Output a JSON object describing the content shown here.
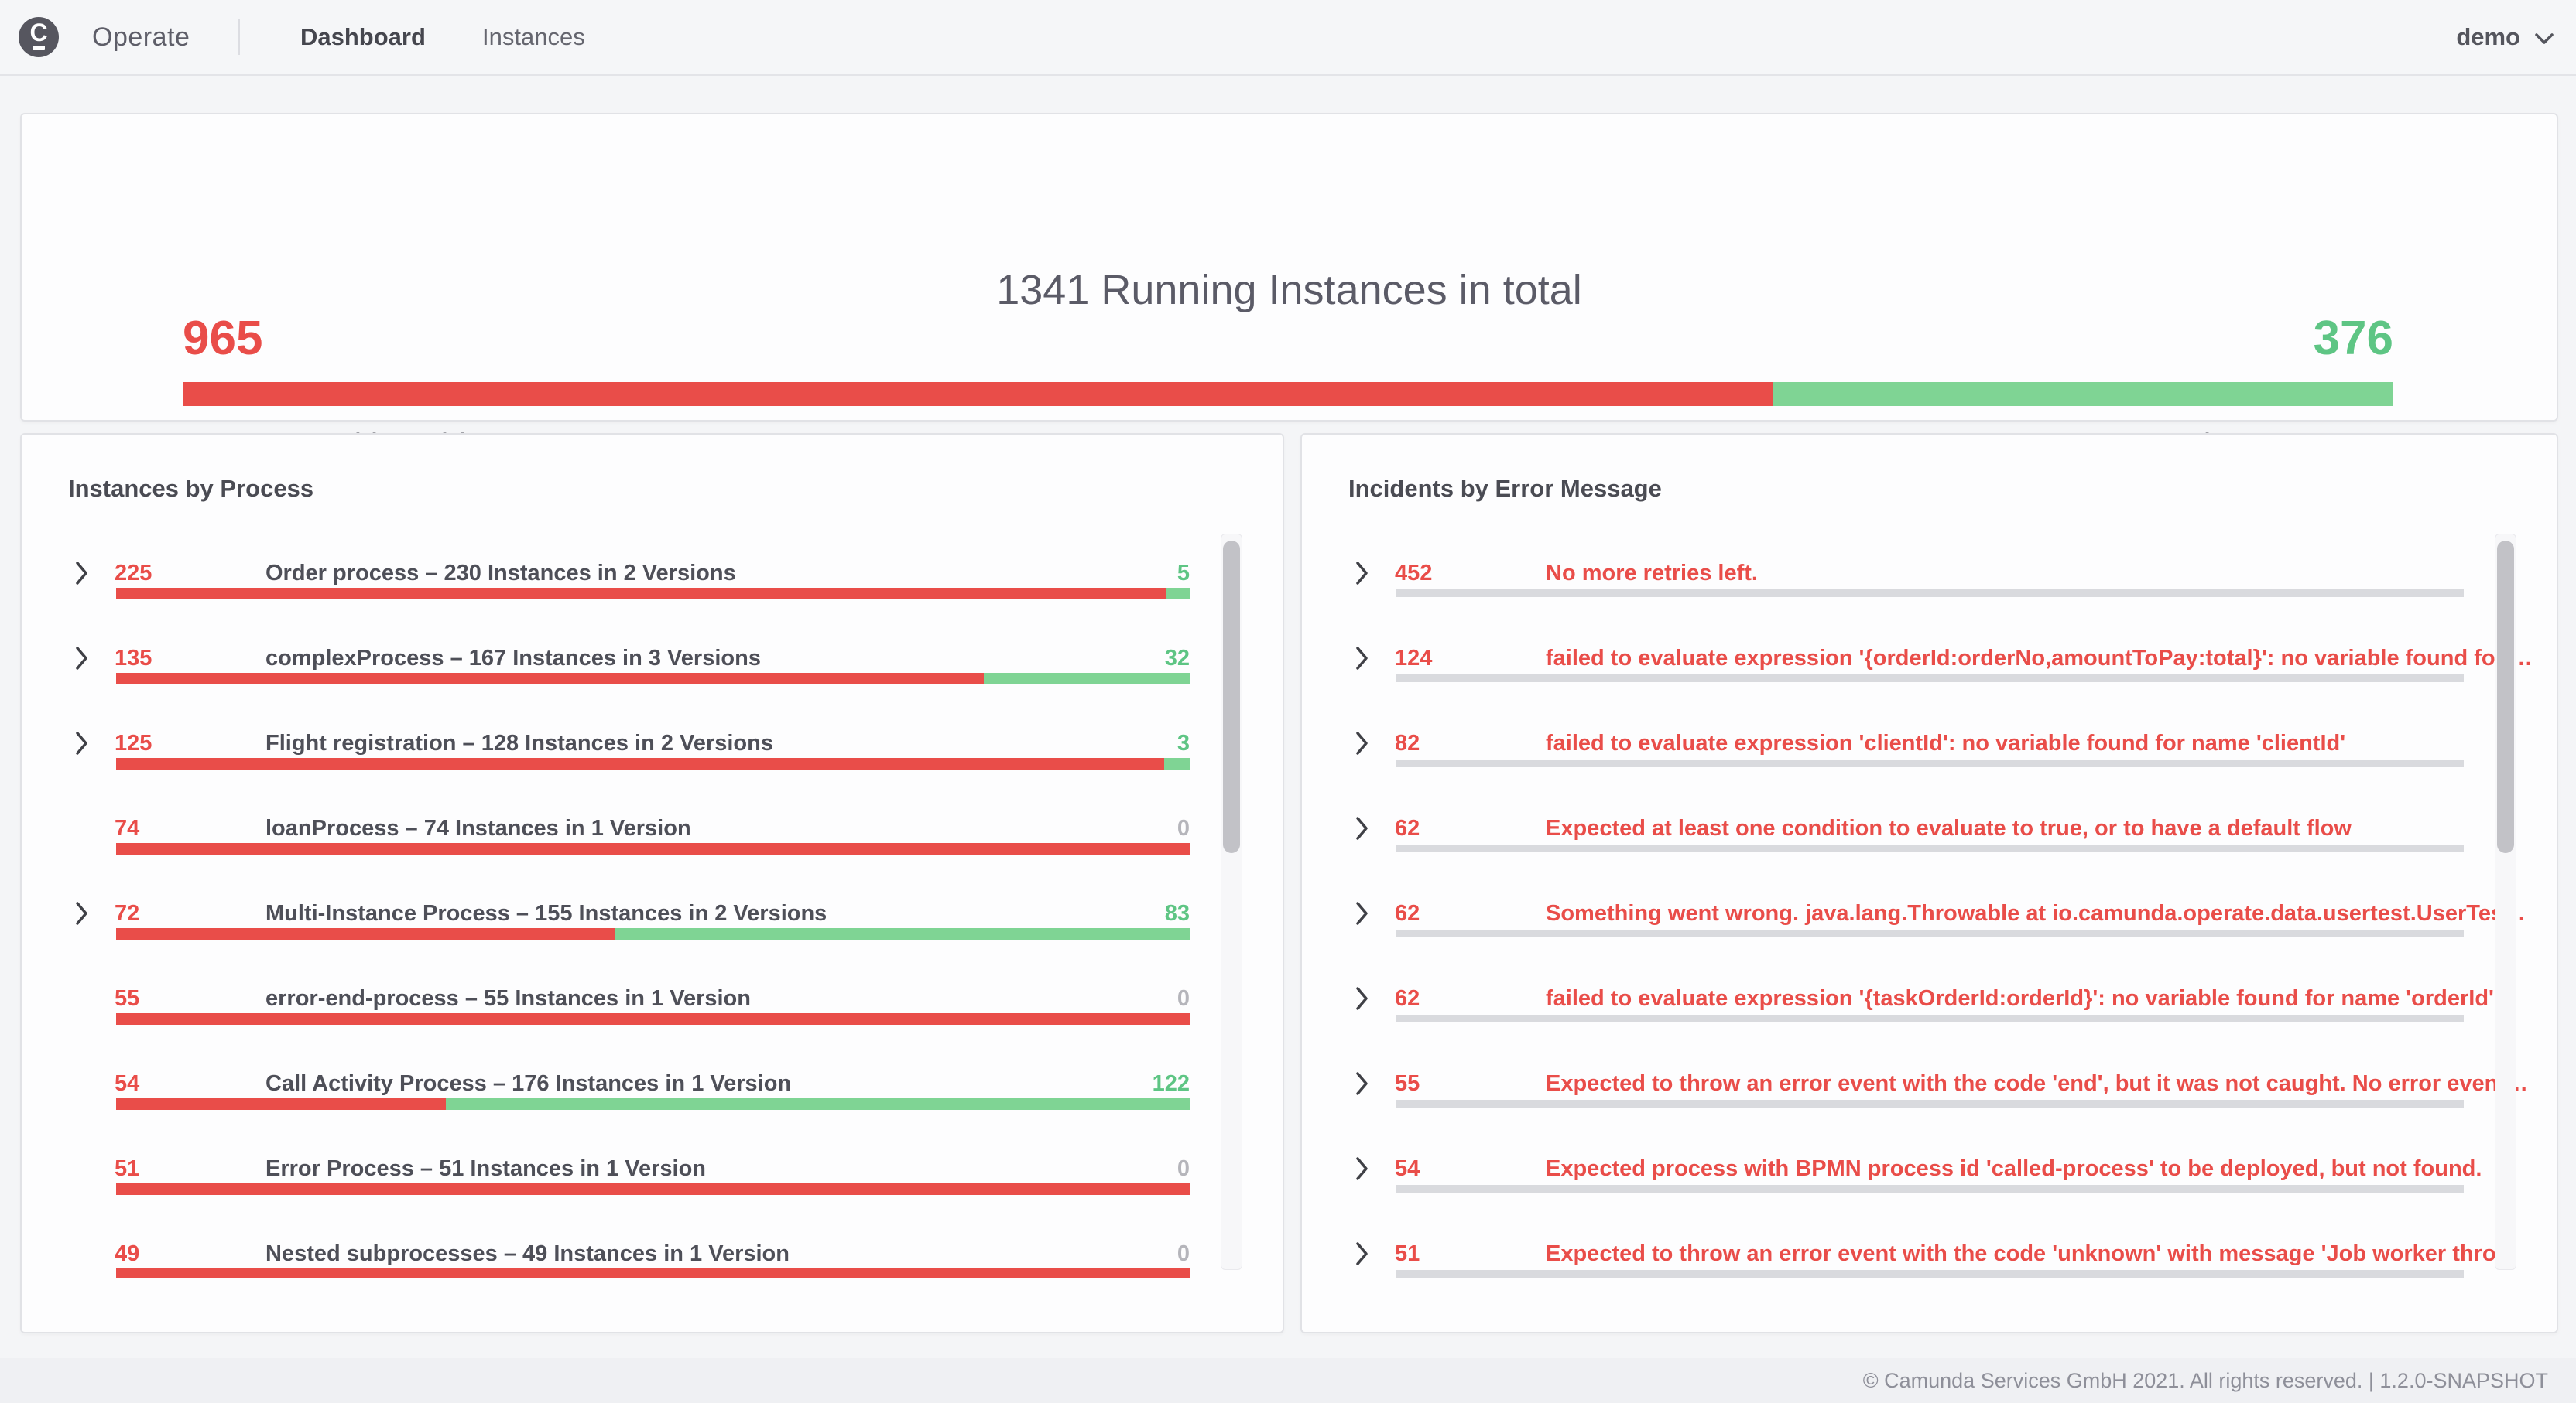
{
  "header": {
    "brand": "Operate",
    "nav": [
      {
        "label": "Dashboard",
        "active": true
      },
      {
        "label": "Instances",
        "active": false
      }
    ],
    "user": "demo"
  },
  "metric_panel": {
    "title": "1341 Running Instances in total",
    "incident_count": 965,
    "active_count": 376,
    "incident_label": "Instances with Incident",
    "active_label": "Active Instances"
  },
  "instances_by_process": {
    "title": "Instances by Process",
    "rows": [
      {
        "expandable": true,
        "incidents": 225,
        "label": "Order process – 230 Instances in 2 Versions",
        "active": 5
      },
      {
        "expandable": true,
        "incidents": 135,
        "label": "complexProcess – 167 Instances in 3 Versions",
        "active": 32
      },
      {
        "expandable": true,
        "incidents": 125,
        "label": "Flight registration – 128 Instances in 2 Versions",
        "active": 3
      },
      {
        "expandable": false,
        "incidents": 74,
        "label": "loanProcess – 74 Instances in 1 Version",
        "active": 0
      },
      {
        "expandable": true,
        "incidents": 72,
        "label": "Multi-Instance Process – 155 Instances in 2 Versions",
        "active": 83
      },
      {
        "expandable": false,
        "incidents": 55,
        "label": "error-end-process – 55 Instances in 1 Version",
        "active": 0
      },
      {
        "expandable": false,
        "incidents": 54,
        "label": "Call Activity Process – 176 Instances in 1 Version",
        "active": 122
      },
      {
        "expandable": false,
        "incidents": 51,
        "label": "Error Process – 51 Instances in 1 Version",
        "active": 0
      },
      {
        "expandable": false,
        "incidents": 49,
        "label": "Nested subprocesses – 49 Instances in 1 Version",
        "active": 0
      }
    ]
  },
  "incidents_by_error": {
    "title": "Incidents by Error Message",
    "rows": [
      {
        "count": 452,
        "message": "No more retries left."
      },
      {
        "count": 124,
        "message": "failed to evaluate expression '{orderId:orderNo,amountToPay:total}': no variable found for …"
      },
      {
        "count": 82,
        "message": "failed to evaluate expression 'clientId': no variable found for name 'clientId'"
      },
      {
        "count": 62,
        "message": "Expected at least one condition to evaluate to true, or to have a default flow"
      },
      {
        "count": 62,
        "message": "Something went wrong. java.lang.Throwable at io.camunda.operate.data.usertest.UserTes…"
      },
      {
        "count": 62,
        "message": "failed to evaluate expression '{taskOrderId:orderId}': no variable found for name 'orderId'"
      },
      {
        "count": 55,
        "message": "Expected to throw an error event with the code 'end', but it was not caught. No error event…"
      },
      {
        "count": 54,
        "message": "Expected process with BPMN process id 'called-process' to be deployed, but not found."
      },
      {
        "count": 51,
        "message": "Expected to throw an error event with the code 'unknown' with message 'Job worker thro…"
      }
    ]
  },
  "footer": {
    "text": "© Camunda Services GmbH 2021. All rights reserved. | 1.2.0-SNAPSHOT"
  },
  "colors": {
    "red": "#e94d49",
    "green_bar": "#7fd494",
    "green_text": "#5ec584",
    "zero_gray": "#b5b5bb",
    "divider_bar": "#d9dade",
    "page_bg": "#f4f5f7",
    "panel_border": "#e1e2e6"
  }
}
